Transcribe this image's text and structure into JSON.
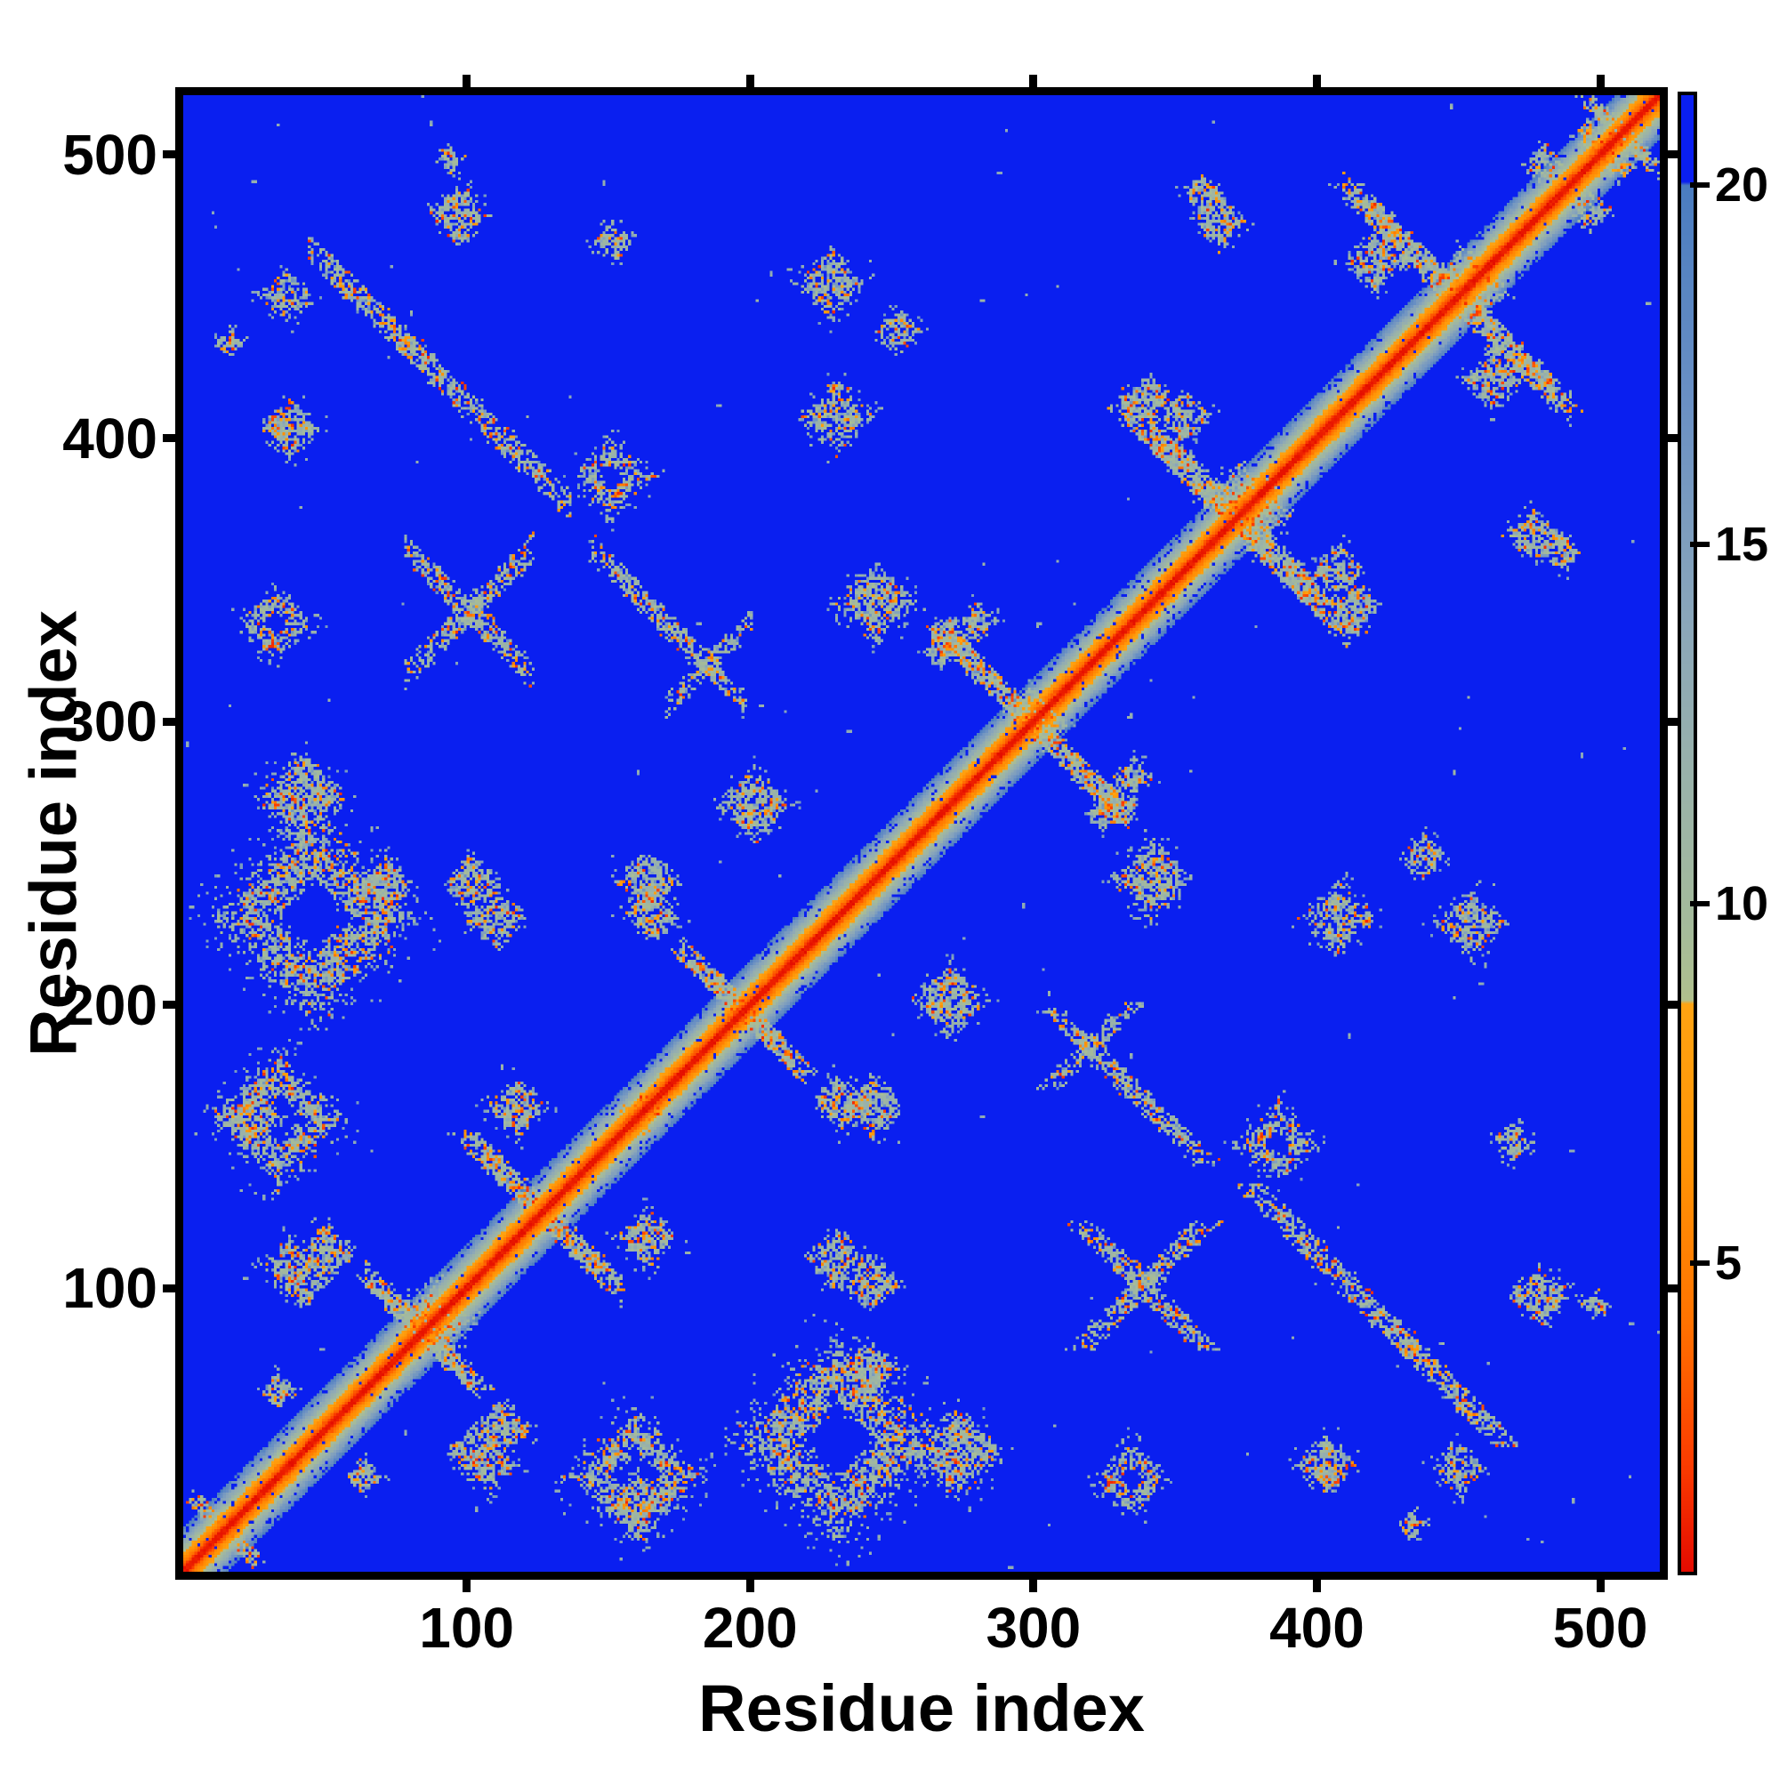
{
  "figure": {
    "background": "#ffffff"
  },
  "axes": {
    "x_label": "Residue index",
    "y_label": "Residue index",
    "x_ticks": [
      100,
      200,
      300,
      400,
      500
    ],
    "y_ticks": [
      100,
      200,
      300,
      400,
      500
    ],
    "residue_min": 1,
    "residue_max": 521
  },
  "colorbar": {
    "ticks": [
      5,
      10,
      15,
      20
    ],
    "vmin": 0.7,
    "vmax": 21.25
  },
  "colors": {
    "background_blue": "#0a1ff0",
    "steel_blue": "#4a7cc0",
    "sage_green": "#9db4a4",
    "orange": "#ff9406",
    "red": "#e60d00",
    "frame_black": "#000000",
    "page_white": "#ffffff"
  },
  "chart_data": {
    "type": "heatmap",
    "title": "",
    "xlabel": "Residue index",
    "ylabel": "Residue index",
    "x_range": [
      1,
      521
    ],
    "y_range": [
      1,
      521
    ],
    "x_tick_values": [
      100,
      200,
      300,
      400,
      500
    ],
    "y_tick_values": [
      100,
      200,
      300,
      400,
      500
    ],
    "colorbar_ticks": [
      5,
      10,
      15,
      20
    ],
    "value_range": [
      0.7,
      21.25
    ],
    "grid": false,
    "legend": "colorbar-right",
    "symmetric": true,
    "colormap_stops": [
      [
        0.7,
        "#e30b00"
      ],
      [
        2.2,
        "#fb3c00"
      ],
      [
        4.2,
        "#ff7300"
      ],
      [
        6.4,
        "#ff9406"
      ],
      [
        8.6,
        "#ffa312"
      ],
      [
        8.65,
        "#b0c08d"
      ],
      [
        9.6,
        "#a5bb9a"
      ],
      [
        11.5,
        "#9bb3a8"
      ],
      [
        14.0,
        "#8aa6ba"
      ],
      [
        17.0,
        "#6a90c4"
      ],
      [
        20.0,
        "#4a7cc0"
      ],
      [
        20.05,
        "#0a1ff0"
      ],
      [
        21.3,
        "#0a1ff0"
      ]
    ],
    "diagonal_band": {
      "core_value": 1.0,
      "slope_per_cell": 1.25,
      "halo_halfwidth": 15
    },
    "clusters": [
      {
        "x": 15,
        "y": 15,
        "kind": "anti",
        "len": 22,
        "w": 9
      },
      {
        "x": 85,
        "y": 85,
        "kind": "anti",
        "len": 40,
        "w": 11
      },
      {
        "x": 127,
        "y": 127,
        "kind": "anti",
        "len": 55,
        "w": 12
      },
      {
        "x": 198,
        "y": 198,
        "kind": "anti",
        "len": 45,
        "w": 11
      },
      {
        "x": 300,
        "y": 300,
        "kind": "anti",
        "len": 68,
        "w": 12
      },
      {
        "x": 372,
        "y": 372,
        "kind": "anti",
        "len": 80,
        "w": 14
      },
      {
        "x": 450,
        "y": 450,
        "kind": "anti",
        "len": 80,
        "w": 13
      },
      {
        "x": 508,
        "y": 508,
        "kind": "anti",
        "len": 26,
        "w": 10
      },
      {
        "x": 66,
        "y": 447,
        "kind": "anti",
        "len": 42,
        "w": 12
      },
      {
        "x": 107,
        "y": 406,
        "kind": "anti",
        "len": 60,
        "w": 13
      },
      {
        "x": 101,
        "y": 339,
        "kind": "anti",
        "len": 45,
        "w": 12
      },
      {
        "x": 171,
        "y": 334,
        "kind": "anti",
        "len": 55,
        "w": 12
      },
      {
        "x": 101,
        "y": 339,
        "kind": "diag",
        "len": 45,
        "w": 12
      },
      {
        "x": 186,
        "y": 321,
        "kind": "diag",
        "len": 30,
        "w": 10
      },
      {
        "x": 152,
        "y": 387,
        "kind": "ring",
        "r": 13,
        "hole": 5
      },
      {
        "x": 47,
        "y": 231,
        "kind": "ring",
        "r": 32,
        "hole": 15
      },
      {
        "x": 34,
        "y": 160,
        "kind": "ring",
        "r": 21,
        "hole": 10
      },
      {
        "x": 33,
        "y": 335,
        "kind": "ring",
        "r": 12,
        "hole": 4
      },
      {
        "x": 98,
        "y": 479,
        "kind": "blob",
        "r": 10
      },
      {
        "x": 95,
        "y": 499,
        "kind": "blob",
        "r": 5
      },
      {
        "x": 37,
        "y": 451,
        "kind": "blob",
        "r": 9
      },
      {
        "x": 38,
        "y": 404,
        "kind": "blob",
        "r": 10
      },
      {
        "x": 17,
        "y": 434,
        "kind": "blob",
        "r": 5
      },
      {
        "x": 229,
        "y": 455,
        "kind": "blob",
        "r": 11
      },
      {
        "x": 253,
        "y": 438,
        "kind": "blob",
        "r": 8
      },
      {
        "x": 231,
        "y": 408,
        "kind": "blob",
        "r": 12
      },
      {
        "x": 245,
        "y": 342,
        "kind": "blob",
        "r": 13
      },
      {
        "x": 152,
        "y": 470,
        "kind": "blob",
        "r": 7
      },
      {
        "x": 42,
        "y": 274,
        "kind": "blob",
        "r": 15
      },
      {
        "x": 202,
        "y": 271,
        "kind": "blob",
        "r": 12
      },
      {
        "x": 111,
        "y": 231,
        "kind": "blob",
        "r": 10
      },
      {
        "x": 166,
        "y": 232,
        "kind": "blob",
        "r": 9
      },
      {
        "x": 118,
        "y": 164,
        "kind": "blob",
        "r": 10
      },
      {
        "x": 163,
        "y": 162,
        "kind": "blob",
        "r": 8
      },
      {
        "x": 38,
        "y": 108,
        "kind": "blob",
        "r": 9
      },
      {
        "x": 244,
        "y": 165,
        "kind": "blob",
        "r": 11
      },
      {
        "x": 243,
        "y": 102,
        "kind": "blob",
        "r": 10
      },
      {
        "x": 243,
        "y": 72,
        "kind": "blob",
        "r": 9
      },
      {
        "x": 161,
        "y": 26,
        "kind": "blob",
        "r": 9
      },
      {
        "x": 113,
        "y": 51,
        "kind": "blob",
        "r": 10
      },
      {
        "x": 101,
        "y": 43,
        "kind": "blob",
        "r": 7
      },
      {
        "x": 34,
        "y": 64,
        "kind": "blob",
        "r": 6
      },
      {
        "x": 281,
        "y": 336,
        "kind": "blob",
        "r": 7
      },
      {
        "x": 366,
        "y": 477,
        "kind": "blob",
        "r": 9
      },
      {
        "x": 421,
        "y": 462,
        "kind": "blob",
        "r": 10
      },
      {
        "x": 354,
        "y": 408,
        "kind": "blob",
        "r": 9
      },
      {
        "x": 487,
        "y": 360,
        "kind": "blob",
        "r": 7
      },
      {
        "x": 415,
        "y": 341,
        "kind": "blob",
        "r": 8
      },
      {
        "x": 89,
        "y": 91,
        "kind": "blob",
        "r": 11
      },
      {
        "x": 373,
        "y": 378,
        "kind": "blob",
        "r": 12
      },
      {
        "x": 300,
        "y": 305,
        "kind": "blob",
        "r": 8
      },
      {
        "x": 452,
        "y": 458,
        "kind": "blob",
        "r": 9
      },
      {
        "x": 330,
        "y": 271,
        "kind": "blob",
        "r": 7
      },
      {
        "x": 268,
        "y": 325,
        "kind": "blob",
        "r": 6
      },
      {
        "x": 481,
        "y": 497,
        "kind": "blob",
        "r": 7
      },
      {
        "x": 497,
        "y": 507,
        "kind": "blob",
        "r": 6
      }
    ],
    "sparse_noise_dots": 75
  }
}
